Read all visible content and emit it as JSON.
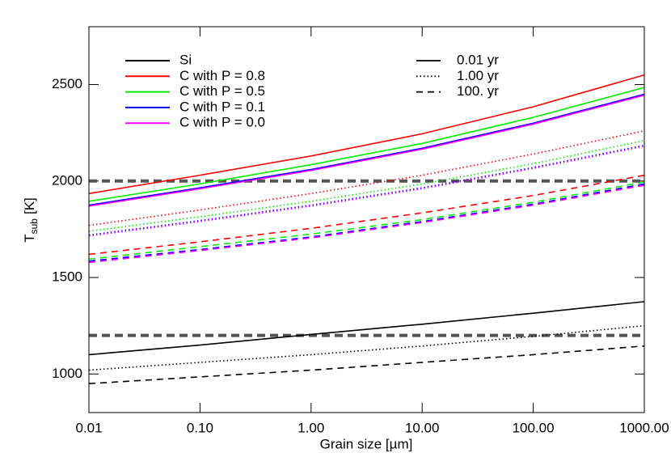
{
  "chart_data": {
    "type": "line",
    "xlabel": "Grain size [µm]",
    "ylabel": "T",
    "ylabel_sub": "sub",
    "ylabel_unit": "[K]",
    "xscale": "log",
    "x": [
      0.01,
      0.1,
      1,
      10,
      100,
      1000
    ],
    "xlim": [
      0.01,
      1000
    ],
    "xticks": [
      {
        "value": 0.01,
        "label": "0.01"
      },
      {
        "value": 0.1,
        "label": "0.10"
      },
      {
        "value": 1,
        "label": "1.00"
      },
      {
        "value": 10,
        "label": "10.00"
      },
      {
        "value": 100,
        "label": "100.00"
      },
      {
        "value": 1000,
        "label": "1000.00"
      }
    ],
    "ylim": [
      800,
      2800
    ],
    "yticks": [
      1000,
      1500,
      2000,
      2500
    ],
    "reference_lines": [
      2000,
      1200
    ],
    "reference_color": "#555555",
    "ages": [
      {
        "name": "0.01 yr",
        "dash": "solid"
      },
      {
        "name": "1.00 yr",
        "dash": "dotted"
      },
      {
        "name": "100. yr",
        "dash": "dashed"
      }
    ],
    "materials": [
      {
        "name": "Si",
        "color": "#000000",
        "values": [
          [
            1100,
            1150,
            1205,
            1258,
            1315,
            1375
          ],
          [
            1020,
            1060,
            1100,
            1145,
            1195,
            1250
          ],
          [
            950,
            985,
            1020,
            1060,
            1100,
            1145
          ]
        ]
      },
      {
        "name": "C with P = 0.8",
        "color": "#ff0000",
        "values": [
          [
            1935,
            2030,
            2130,
            2245,
            2385,
            2550
          ],
          [
            1770,
            1850,
            1935,
            2030,
            2140,
            2260
          ],
          [
            1620,
            1685,
            1755,
            1835,
            1925,
            2030
          ]
        ]
      },
      {
        "name": "C with P = 0.5",
        "color": "#00ee00",
        "values": [
          [
            1895,
            1985,
            2085,
            2195,
            2330,
            2485
          ],
          [
            1740,
            1815,
            1895,
            1985,
            2090,
            2210
          ],
          [
            1595,
            1660,
            1725,
            1800,
            1890,
            1995
          ]
        ]
      },
      {
        "name": "C with P = 0.1",
        "color": "#0000ff",
        "values": [
          [
            1875,
            1965,
            2060,
            2170,
            2300,
            2450
          ],
          [
            1720,
            1795,
            1875,
            1965,
            2070,
            2185
          ],
          [
            1585,
            1645,
            1710,
            1790,
            1880,
            1985
          ]
        ]
      },
      {
        "name": "C with P = 0.0",
        "color": "#ff00ff",
        "values": [
          [
            1870,
            1960,
            2055,
            2165,
            2295,
            2445
          ],
          [
            1715,
            1790,
            1870,
            1960,
            2065,
            2180
          ],
          [
            1578,
            1640,
            1705,
            1785,
            1875,
            1978
          ]
        ]
      }
    ]
  }
}
